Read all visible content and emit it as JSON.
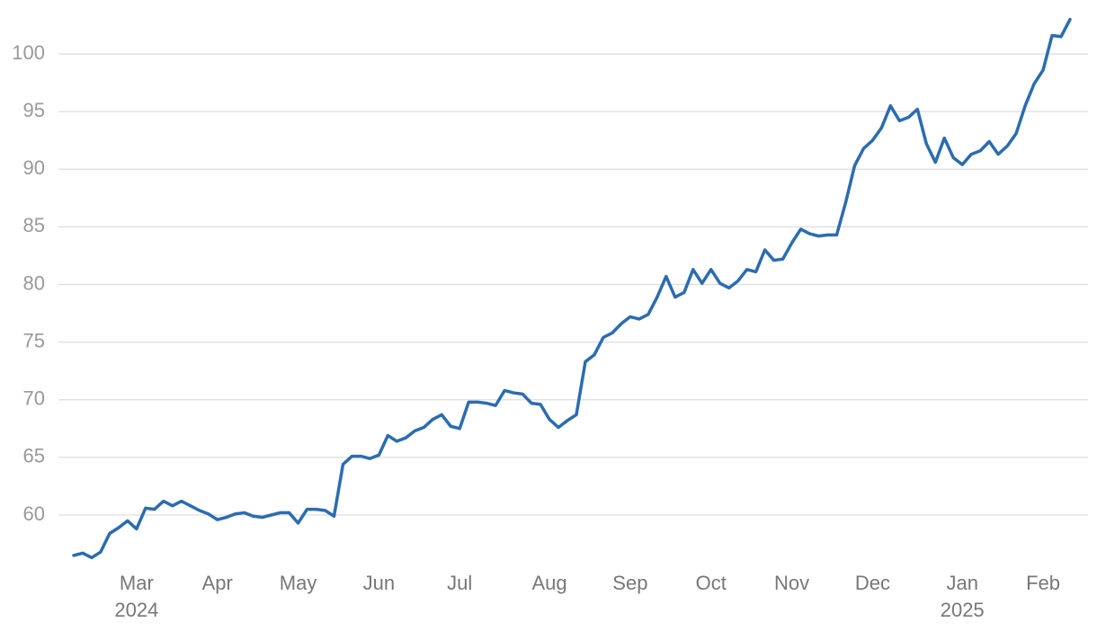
{
  "chart_data": {
    "type": "line",
    "categories": [
      null,
      null,
      null,
      null,
      null,
      null,
      null,
      "Mar\n2024",
      null,
      null,
      null,
      null,
      null,
      null,
      null,
      null,
      "Apr",
      null,
      null,
      null,
      null,
      null,
      null,
      null,
      null,
      "May",
      null,
      null,
      null,
      null,
      null,
      null,
      null,
      null,
      "Jun",
      null,
      null,
      null,
      null,
      null,
      null,
      null,
      null,
      "Jul",
      null,
      null,
      null,
      null,
      null,
      null,
      null,
      null,
      null,
      "Aug",
      null,
      null,
      null,
      null,
      null,
      null,
      null,
      null,
      "Sep",
      null,
      null,
      null,
      null,
      null,
      null,
      null,
      null,
      "Oct",
      null,
      null,
      null,
      null,
      null,
      null,
      null,
      null,
      "Nov",
      null,
      null,
      null,
      null,
      null,
      null,
      null,
      null,
      "Dec",
      null,
      null,
      null,
      null,
      null,
      null,
      null,
      null,
      null,
      "Jan\n2025",
      null,
      null,
      null,
      null,
      null,
      null,
      null,
      null,
      "Feb",
      null,
      null,
      null
    ],
    "values": [
      56.5,
      56.7,
      56.3,
      56.8,
      58.4,
      58.9,
      59.5,
      58.8,
      60.6,
      60.5,
      61.2,
      60.8,
      61.2,
      60.8,
      60.4,
      60.1,
      59.6,
      59.8,
      60.1,
      60.2,
      59.9,
      59.8,
      60.0,
      60.2,
      60.2,
      59.3,
      60.5,
      60.5,
      60.4,
      59.9,
      64.4,
      65.1,
      65.1,
      64.9,
      65.2,
      66.9,
      66.4,
      66.7,
      67.3,
      67.6,
      68.3,
      68.7,
      67.7,
      67.5,
      69.8,
      69.8,
      69.7,
      69.5,
      70.8,
      70.6,
      70.5,
      69.7,
      69.6,
      68.3,
      67.6,
      68.2,
      68.7,
      73.3,
      73.9,
      75.4,
      75.8,
      76.6,
      77.2,
      77.0,
      77.4,
      78.9,
      80.7,
      78.9,
      79.3,
      81.3,
      80.1,
      81.3,
      80.1,
      79.7,
      80.3,
      81.3,
      81.1,
      83.0,
      82.1,
      82.2,
      83.6,
      84.8,
      84.4,
      84.2,
      84.3,
      84.3,
      87.1,
      90.3,
      91.8,
      92.5,
      93.6,
      95.5,
      94.2,
      94.5,
      95.2,
      92.2,
      90.6,
      92.7,
      91.0,
      90.4,
      91.3,
      91.6,
      92.4,
      91.3,
      92.0,
      93.1,
      95.5,
      97.4,
      98.6,
      101.6,
      101.5,
      103.0
    ],
    "color": "#2b6cb0",
    "ylim": [
      56,
      104
    ],
    "yticks": [
      60,
      65,
      70,
      75,
      80,
      85,
      90,
      95,
      100
    ],
    "grid": true
  }
}
